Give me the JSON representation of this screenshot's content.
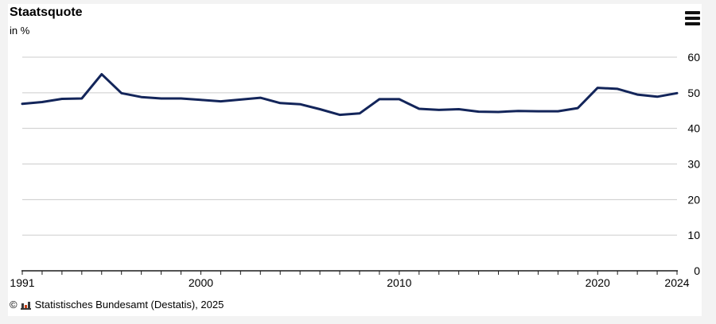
{
  "header": {
    "title": "Staatsquote",
    "subtitle": "in %",
    "menu_icon": "hamburger-menu-icon"
  },
  "footer": {
    "copyright_symbol": "©",
    "logo_icon": "destatis-bar-chart-logo",
    "source": "Statistisches Bundesamt (Destatis), 2025"
  },
  "colors": {
    "line": "#13255a",
    "grid": "#cccccc",
    "axis": "#1a1a1a",
    "background": "#f3f3f3",
    "card": "#ffffff",
    "logo_dark": "#3a3a3a",
    "logo_red": "#cc4217"
  },
  "chart_data": {
    "type": "line",
    "title": "Staatsquote",
    "ylabel": "in %",
    "ylim": [
      0,
      60
    ],
    "yticks": [
      0,
      10,
      20,
      30,
      40,
      50,
      60
    ],
    "xtick_labels": [
      "1991",
      "2000",
      "2010",
      "2020",
      "2024"
    ],
    "grid": "horizontal",
    "y_axis_side": "right",
    "legend": "none",
    "x": [
      1991,
      1992,
      1993,
      1994,
      1995,
      1996,
      1997,
      1998,
      1999,
      2000,
      2001,
      2002,
      2003,
      2004,
      2005,
      2006,
      2007,
      2008,
      2009,
      2010,
      2011,
      2012,
      2013,
      2014,
      2015,
      2016,
      2017,
      2018,
      2019,
      2020,
      2021,
      2022,
      2023,
      2024
    ],
    "series": [
      {
        "name": "Staatsquote",
        "values": [
          46.9,
          47.4,
          48.3,
          48.4,
          55.2,
          49.9,
          48.8,
          48.4,
          48.4,
          48.0,
          47.6,
          48.1,
          48.6,
          47.1,
          46.8,
          45.4,
          43.8,
          44.2,
          48.2,
          48.2,
          45.5,
          45.2,
          45.4,
          44.7,
          44.6,
          44.9,
          44.8,
          44.8,
          45.7,
          51.4,
          51.1,
          49.5,
          48.9,
          49.9
        ]
      }
    ]
  }
}
